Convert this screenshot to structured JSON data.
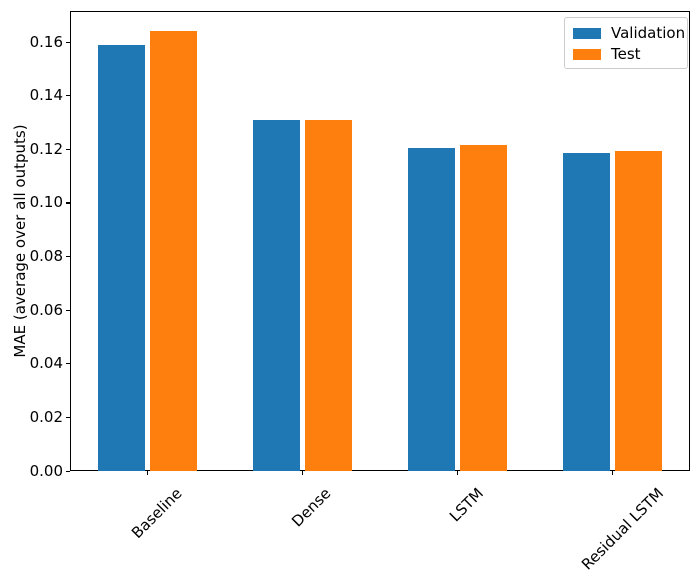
{
  "chart_data": {
    "type": "bar",
    "title": "",
    "xlabel": "",
    "ylabel": "MAE (average over all outputs)",
    "categories": [
      "Baseline",
      "Dense",
      "LSTM",
      "Residual LSTM"
    ],
    "series": [
      {
        "name": "Validation",
        "color": "#1f77b4",
        "values": [
          0.159,
          0.131,
          0.1205,
          0.1185
        ]
      },
      {
        "name": "Test",
        "color": "#ff7f0e",
        "values": [
          0.164,
          0.131,
          0.1215,
          0.1195
        ]
      }
    ],
    "ylim": [
      0,
      0.1716
    ],
    "yticks": [
      0.0,
      0.02,
      0.04,
      0.06,
      0.08,
      0.1,
      0.12,
      0.14,
      0.16
    ],
    "ytick_decimals": 2,
    "xtick_rotation_deg": 45,
    "grid": false,
    "legend": {
      "position": "upper right",
      "entries": [
        "Validation",
        "Test"
      ]
    }
  }
}
